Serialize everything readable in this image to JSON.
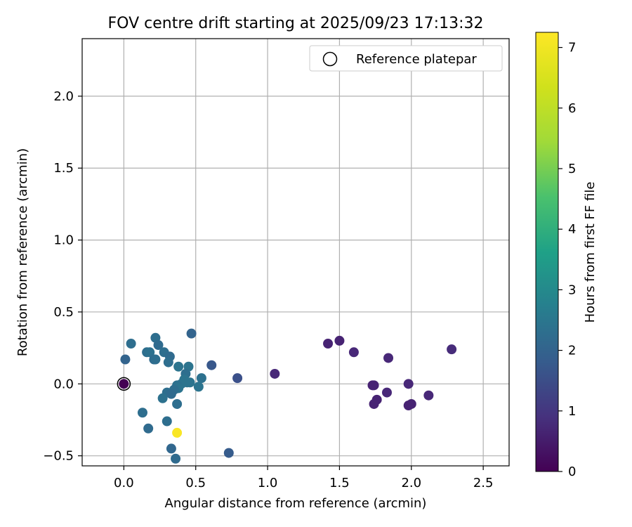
{
  "chart_data": {
    "type": "scatter",
    "title": "FOV centre drift starting at 2025/09/23 17:13:32",
    "xlabel": "Angular distance from reference (arcmin)",
    "ylabel": "Rotation from reference (arcmin)",
    "xlim": [
      -0.29,
      2.68
    ],
    "ylim": [
      -0.57,
      2.4
    ],
    "xticks": [
      0.0,
      0.5,
      1.0,
      1.5,
      2.0,
      2.5
    ],
    "xtick_labels": [
      "0.0",
      "0.5",
      "1.0",
      "1.5",
      "2.0",
      "2.5"
    ],
    "yticks": [
      -0.5,
      0.0,
      0.5,
      1.0,
      1.5,
      2.0
    ],
    "ytick_labels": [
      "−0.5",
      "0.0",
      "0.5",
      "1.0",
      "1.5",
      "2.0"
    ],
    "grid": true,
    "legend": {
      "position": "top-right",
      "entries": [
        "Reference platepar"
      ]
    },
    "colorbar": {
      "label": "Hours from first FF file",
      "range": [
        0,
        7.25
      ],
      "ticks": [
        0,
        1,
        2,
        3,
        4,
        5,
        6,
        7
      ],
      "tick_labels": [
        "0",
        "1",
        "2",
        "3",
        "4",
        "5",
        "6",
        "7"
      ],
      "colormap": "viridis"
    },
    "reference_point": {
      "x": 0.0,
      "y": 0.0
    },
    "points": [
      {
        "x": 0.0,
        "y": 0.0,
        "c": 0.0
      },
      {
        "x": 1.42,
        "y": 0.28,
        "c": 0.7
      },
      {
        "x": 1.5,
        "y": 0.3,
        "c": 0.7
      },
      {
        "x": 1.6,
        "y": 0.22,
        "c": 0.8
      },
      {
        "x": 1.84,
        "y": 0.18,
        "c": 0.8
      },
      {
        "x": 2.28,
        "y": 0.24,
        "c": 0.9
      },
      {
        "x": 1.05,
        "y": 0.07,
        "c": 0.8
      },
      {
        "x": 1.73,
        "y": -0.01,
        "c": 0.7
      },
      {
        "x": 1.74,
        "y": -0.01,
        "c": 0.7
      },
      {
        "x": 1.83,
        "y": -0.06,
        "c": 0.8
      },
      {
        "x": 1.98,
        "y": 0.0,
        "c": 0.8
      },
      {
        "x": 2.12,
        "y": -0.08,
        "c": 0.8
      },
      {
        "x": 1.76,
        "y": -0.11,
        "c": 0.7
      },
      {
        "x": 1.74,
        "y": -0.14,
        "c": 0.7
      },
      {
        "x": 1.98,
        "y": -0.15,
        "c": 0.7
      },
      {
        "x": 2.0,
        "y": -0.14,
        "c": 0.7
      },
      {
        "x": 0.79,
        "y": 0.04,
        "c": 1.8
      },
      {
        "x": 0.61,
        "y": 0.13,
        "c": 2.0
      },
      {
        "x": 0.47,
        "y": 0.35,
        "c": 2.3
      },
      {
        "x": 0.05,
        "y": 0.28,
        "c": 2.6
      },
      {
        "x": 0.01,
        "y": 0.17,
        "c": 2.3
      },
      {
        "x": 0.22,
        "y": 0.32,
        "c": 2.6
      },
      {
        "x": 0.24,
        "y": 0.27,
        "c": 2.5
      },
      {
        "x": 0.16,
        "y": 0.22,
        "c": 2.6
      },
      {
        "x": 0.18,
        "y": 0.22,
        "c": 2.7
      },
      {
        "x": 0.28,
        "y": 0.22,
        "c": 2.6
      },
      {
        "x": 0.21,
        "y": 0.17,
        "c": 2.5
      },
      {
        "x": 0.22,
        "y": 0.17,
        "c": 2.6
      },
      {
        "x": 0.32,
        "y": 0.19,
        "c": 2.5
      },
      {
        "x": 0.31,
        "y": 0.15,
        "c": 2.6
      },
      {
        "x": 0.38,
        "y": 0.12,
        "c": 2.8
      },
      {
        "x": 0.45,
        "y": 0.12,
        "c": 2.8
      },
      {
        "x": 0.43,
        "y": 0.07,
        "c": 2.6
      },
      {
        "x": 0.54,
        "y": 0.04,
        "c": 2.7
      },
      {
        "x": 0.42,
        "y": 0.03,
        "c": 2.8
      },
      {
        "x": 0.44,
        "y": 0.01,
        "c": 2.8
      },
      {
        "x": 0.46,
        "y": 0.01,
        "c": 2.8
      },
      {
        "x": 0.4,
        "y": 0.0,
        "c": 2.8
      },
      {
        "x": 0.37,
        "y": -0.01,
        "c": 2.7
      },
      {
        "x": 0.52,
        "y": -0.02,
        "c": 2.8
      },
      {
        "x": 0.38,
        "y": -0.03,
        "c": 2.8
      },
      {
        "x": 0.35,
        "y": -0.04,
        "c": 2.6
      },
      {
        "x": 0.3,
        "y": -0.06,
        "c": 2.6
      },
      {
        "x": 0.33,
        "y": -0.07,
        "c": 2.5
      },
      {
        "x": 0.27,
        "y": -0.1,
        "c": 2.7
      },
      {
        "x": 0.37,
        "y": -0.14,
        "c": 2.6
      },
      {
        "x": 0.13,
        "y": -0.2,
        "c": 2.6
      },
      {
        "x": 0.3,
        "y": -0.26,
        "c": 2.6
      },
      {
        "x": 0.17,
        "y": -0.31,
        "c": 2.5
      },
      {
        "x": 0.37,
        "y": -0.34,
        "c": 7.2
      },
      {
        "x": 0.33,
        "y": -0.45,
        "c": 2.4
      },
      {
        "x": 0.73,
        "y": -0.48,
        "c": 2.1
      },
      {
        "x": 0.36,
        "y": -0.52,
        "c": 2.5
      }
    ]
  }
}
